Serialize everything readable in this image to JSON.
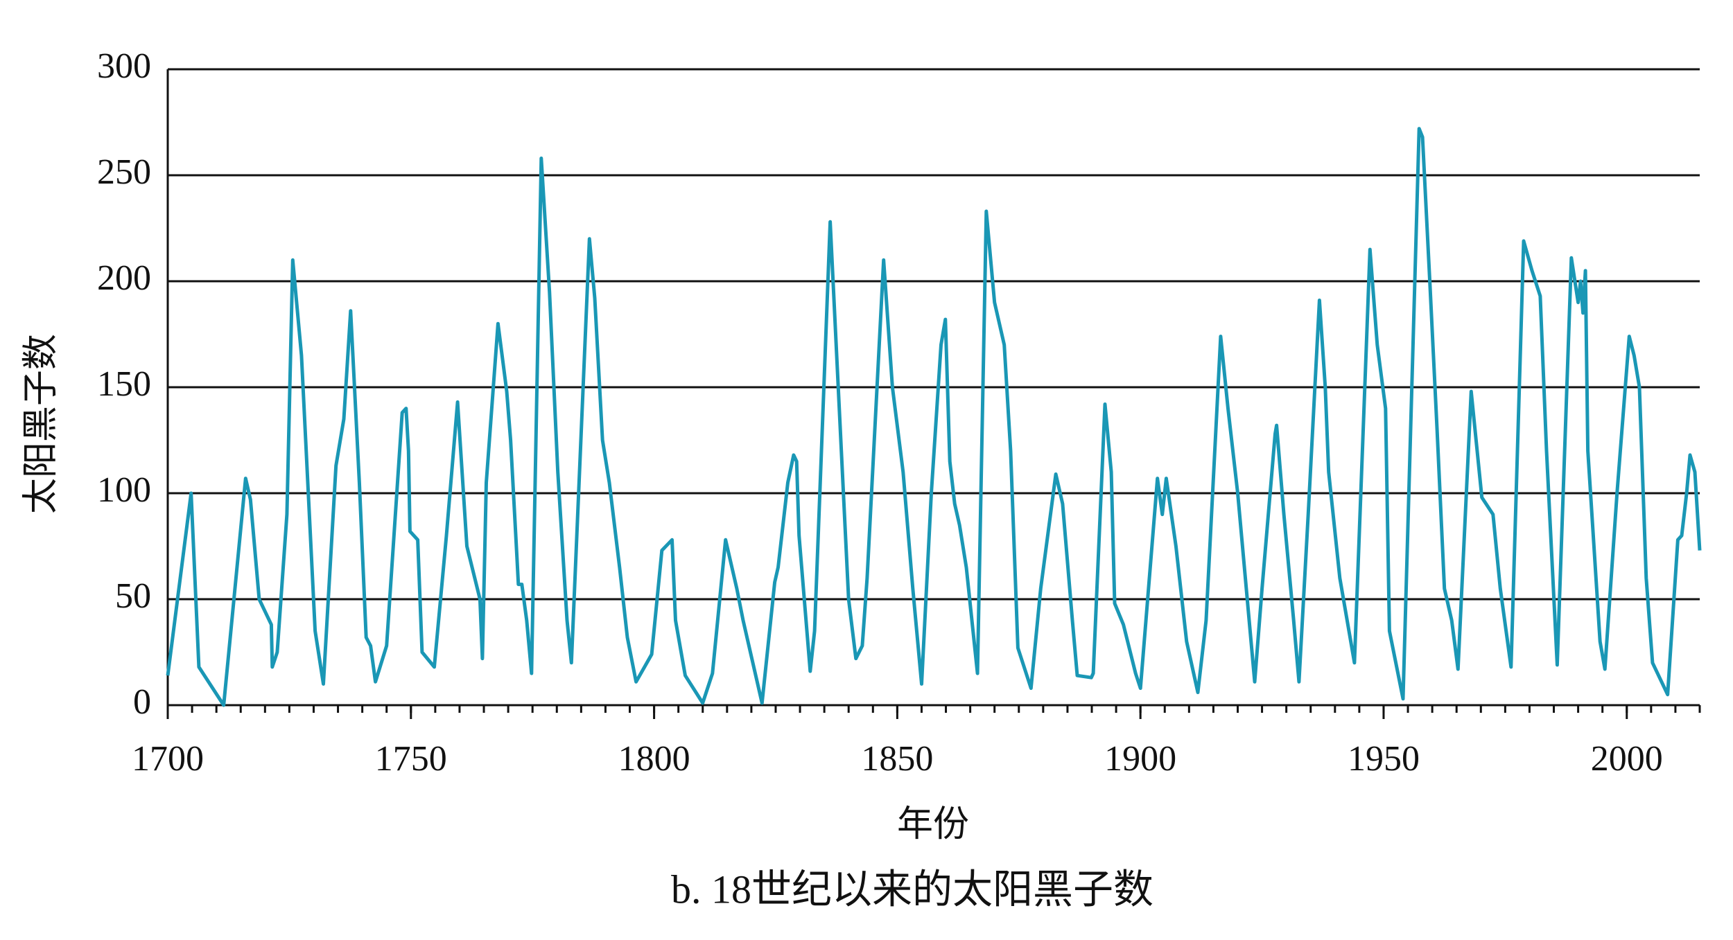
{
  "chart_data": {
    "type": "line",
    "title": "b. 18世纪以来的太阳黑子数",
    "xlabel": "年份",
    "ylabel": "太阳黑子数",
    "xlim": [
      1700,
      2015
    ],
    "xticks": [
      1700,
      1750,
      1800,
      1850,
      1900,
      1950,
      2000
    ],
    "x_minor_step": 5,
    "ylim": [
      0,
      300
    ],
    "yticks": [
      0,
      50,
      100,
      150,
      200,
      250,
      300
    ],
    "grid": true,
    "series": [
      {
        "name": "太阳黑子数",
        "color": "#1a97b5",
        "x": [
          1700,
          1704.8,
          1706.4,
          1711.5,
          1716,
          1717,
          1718.8,
          1721.3,
          1721.5,
          1722.5,
          1724.5,
          1725.7,
          1727.5,
          1730.3,
          1732,
          1734.6,
          1736.2,
          1737.6,
          1739.4,
          1740.8,
          1741.7,
          1742.7,
          1745,
          1748.2,
          1749,
          1749.5,
          1749.8,
          1751.4,
          1752.3,
          1754.8,
          1757.3,
          1759.6,
          1761.5,
          1764.2,
          1764.7,
          1765.5,
          1767.9,
          1769.7,
          1770.5,
          1771.8,
          1772.1,
          1772.8,
          1773.8,
          1774.8,
          1776.8,
          1778.5,
          1780.2,
          1782.1,
          1783,
          1786.7,
          1787.8,
          1789.4,
          1790.8,
          1792.9,
          1794.5,
          1796.3,
          1799.5,
          1801.6,
          1803.7,
          1804.4,
          1806.4,
          1810,
          1812,
          1814.7,
          1817,
          1818.3,
          1820.3,
          1822.2,
          1824.8,
          1825.5,
          1827.5,
          1828.7,
          1829.3,
          1829.8,
          1832.1,
          1833,
          1836.2,
          1838.5,
          1840,
          1841.5,
          1842.8,
          1843.8,
          1847.2,
          1849,
          1851.2,
          1853.2,
          1855,
          1857,
          1859,
          1859.9,
          1860.8,
          1861.8,
          1862.8,
          1864.2,
          1866.5,
          1868.3,
          1870,
          1872,
          1873.3,
          1874.8,
          1877.5,
          1879.5,
          1882.6,
          1884,
          1886,
          1887,
          1889.9,
          1890.3,
          1892.7,
          1894,
          1894.7,
          1896.5,
          1899,
          1900,
          1903.5,
          1904.5,
          1905.3,
          1907.3,
          1909.5,
          1911.8,
          1913.5,
          1916.5,
          1918,
          1920,
          1923.5,
          1925,
          1927.7,
          1928,
          1929.5,
          1931.5,
          1932.6,
          1934.5,
          1936.8,
          1938,
          1938.7,
          1941,
          1944,
          1947.2,
          1948.7,
          1950.4,
          1951.2,
          1954,
          1957.3,
          1958,
          1959.5,
          1961,
          1962.5,
          1964,
          1965.3,
          1968,
          1970.2,
          1972.5,
          1974,
          1976.2,
          1978.8,
          1980.5,
          1982.2,
          1983.5,
          1985.7,
          1988.6,
          1990,
          1990.5,
          1991,
          1991.5,
          1992,
          1994.5,
          1995.5,
          1998,
          2000.5,
          2001.5,
          2002.6,
          2004,
          2005.3,
          2008.4,
          2010.5,
          2011.3,
          2012.3,
          2013,
          2014,
          2015
        ],
        "values": [
          14,
          100,
          18,
          0,
          107,
          97,
          50,
          38,
          18,
          25,
          90,
          210,
          165,
          35,
          10,
          113,
          135,
          186,
          105,
          32,
          28,
          11,
          28,
          138,
          140,
          120,
          82,
          78,
          25,
          18,
          80,
          143,
          75,
          50,
          22,
          105,
          180,
          148,
          125,
          70,
          57,
          57,
          40,
          15,
          258,
          195,
          110,
          40,
          20,
          220,
          192,
          125,
          105,
          65,
          32,
          11,
          24,
          73,
          78,
          40,
          14,
          1,
          15,
          78,
          55,
          40,
          20,
          1,
          58,
          65,
          105,
          118,
          115,
          80,
          16,
          35,
          228,
          120,
          50,
          22,
          28,
          60,
          210,
          150,
          110,
          55,
          10,
          100,
          170,
          182,
          115,
          95,
          85,
          65,
          15,
          233,
          190,
          170,
          120,
          27,
          8,
          55,
          109,
          95,
          40,
          14,
          13,
          15,
          142,
          110,
          48,
          38,
          15,
          8,
          107,
          90,
          107,
          75,
          30,
          6,
          40,
          174,
          140,
          100,
          11,
          55,
          128,
          132,
          90,
          40,
          11,
          90,
          191,
          150,
          110,
          60,
          20,
          215,
          170,
          140,
          35,
          3,
          272,
          268,
          200,
          130,
          55,
          40,
          17,
          148,
          98,
          90,
          55,
          18,
          219,
          205,
          193,
          120,
          19,
          211,
          190,
          200,
          185,
          205,
          120,
          30,
          17,
          100,
          174,
          165,
          150,
          60,
          20,
          5,
          78,
          80,
          100,
          118,
          110,
          73
        ]
      }
    ]
  }
}
